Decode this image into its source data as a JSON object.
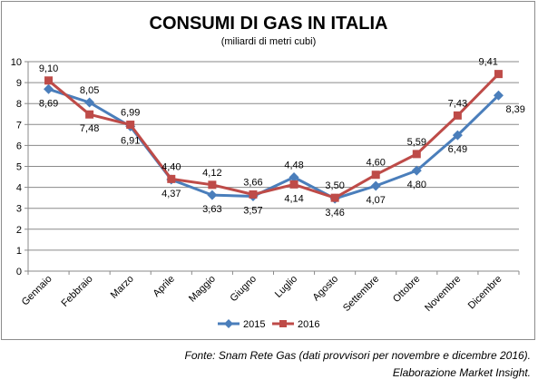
{
  "chart_data": {
    "type": "line",
    "title": "CONSUMI DI GAS IN ITALIA",
    "subtitle": "(miliardi di metri cubi)",
    "xlabel": "",
    "ylabel": "",
    "categories": [
      "Gennaio",
      "Febbraio",
      "Marzo",
      "Aprile",
      "Maggio",
      "Giugno",
      "Luglio",
      "Agosto",
      "Settembre",
      "Ottobre",
      "Novembre",
      "Dicembre"
    ],
    "ylim": [
      0,
      10
    ],
    "yticks": [
      0,
      1,
      2,
      3,
      4,
      5,
      6,
      7,
      8,
      9,
      10
    ],
    "grid": true,
    "legend_position": "bottom",
    "series": [
      {
        "name": "2015",
        "color": "#4a7ebb",
        "marker": "diamond",
        "values": [
          8.69,
          8.05,
          6.91,
          4.37,
          3.63,
          3.57,
          4.48,
          3.46,
          4.07,
          4.8,
          6.49,
          8.39
        ],
        "labels": [
          "8,69",
          "8,05",
          "6,91",
          "4,37",
          "3,63",
          "3,57",
          "4,48",
          "3,46",
          "4,07",
          "4,80",
          "6,49",
          "8,39"
        ]
      },
      {
        "name": "2016",
        "color": "#be4b48",
        "marker": "square",
        "values": [
          9.1,
          7.48,
          6.99,
          4.4,
          4.12,
          3.66,
          4.14,
          3.5,
          4.6,
          5.59,
          7.43,
          9.41
        ],
        "labels": [
          "9,10",
          "7,48",
          "6,99",
          "4,40",
          "4,12",
          "3,66",
          "4,14",
          "3,50",
          "4,60",
          "5,59",
          "7,43",
          "9,41"
        ]
      }
    ]
  },
  "footer": {
    "source": "Fonte: Snam Rete Gas (dati provvisori per novembre e dicembre 2016).",
    "credit": "Elaborazione Market Insight."
  }
}
